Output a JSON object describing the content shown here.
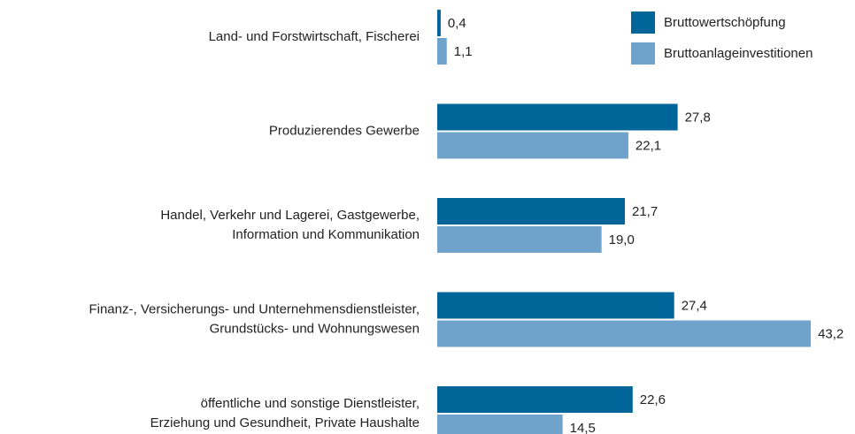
{
  "chart_data": {
    "type": "bar",
    "orientation": "horizontal",
    "categories": [
      [
        "Land- und Forstwirtschaft, Fischerei"
      ],
      [
        "Produzierendes Gewerbe"
      ],
      [
        "Handel, Verkehr und Lagerei, Gastgewerbe,",
        "Information und Kommunikation"
      ],
      [
        "Finanz-, Versicherungs- und Unternehmensdienstleister,",
        "Grundstücks- und Wohnungswesen"
      ],
      [
        "öffentliche und sonstige Dienstleister,",
        "Erziehung und Gesundheit, Private Haushalte"
      ]
    ],
    "series": [
      {
        "name": "Bruttowertschöpfung",
        "color": "#00669a",
        "values": [
          0.4,
          27.8,
          21.7,
          27.4,
          22.6
        ],
        "value_labels": [
          "0,4",
          "27,8",
          "21,7",
          "27,4",
          "22,6"
        ]
      },
      {
        "name": "Bruttoanlageinvestitionen",
        "color": "#6fa3cc",
        "values": [
          1.1,
          22.1,
          19.0,
          43.2,
          14.5
        ],
        "value_labels": [
          "1,1",
          "22,1",
          "19,0",
          "43,2",
          "14,5"
        ]
      }
    ],
    "legend": "top-right"
  }
}
